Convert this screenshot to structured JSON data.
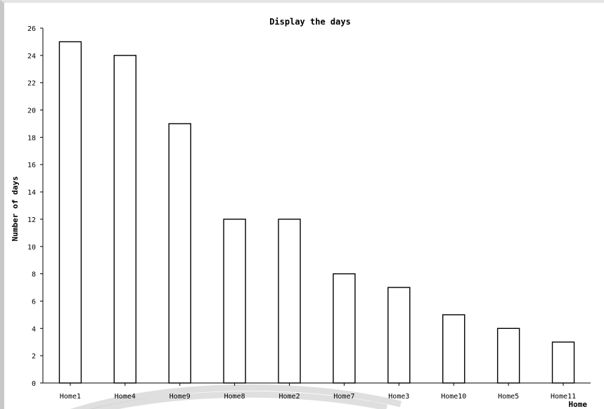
{
  "chart_data": {
    "type": "bar",
    "title": "Display the days",
    "xlabel": "Home",
    "ylabel": "Number of days",
    "categories": [
      "Home1",
      "Home4",
      "Home9",
      "Home8",
      "Home2",
      "Home7",
      "Home3",
      "Home10",
      "Home5",
      "Home11"
    ],
    "values": [
      25,
      24,
      19,
      12,
      12,
      8,
      7,
      5,
      4,
      3
    ],
    "ylim": [
      0,
      26
    ],
    "yticks": [
      0,
      2,
      4,
      6,
      8,
      10,
      12,
      14,
      16,
      18,
      20,
      22,
      24,
      26
    ],
    "grid": false,
    "bar_fill": "#ffffff",
    "bar_stroke": "#000000"
  }
}
